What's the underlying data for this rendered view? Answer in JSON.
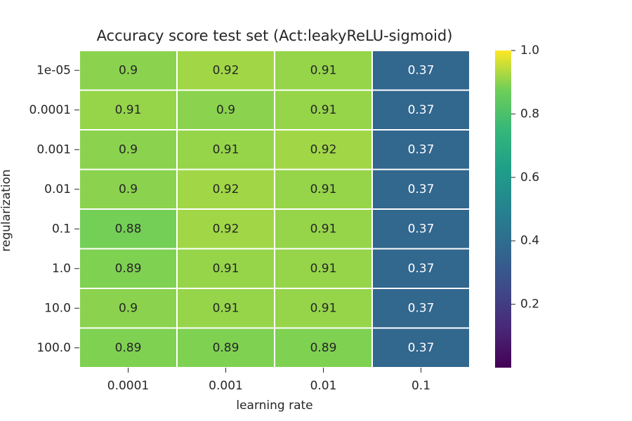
{
  "chart_data": {
    "type": "heatmap",
    "title": "Accuracy score test set (Act:leakyReLU-sigmoid)",
    "xlabel": "learning rate",
    "ylabel": "regularization",
    "x_categories": [
      "0.0001",
      "0.001",
      "0.01",
      "0.1"
    ],
    "y_categories": [
      "1e-05",
      "0.0001",
      "0.001",
      "0.01",
      "0.1",
      "1.0",
      "10.0",
      "100.0"
    ],
    "values": [
      [
        0.9,
        0.92,
        0.91,
        0.37
      ],
      [
        0.91,
        0.9,
        0.91,
        0.37
      ],
      [
        0.9,
        0.91,
        0.92,
        0.37
      ],
      [
        0.9,
        0.92,
        0.91,
        0.37
      ],
      [
        0.88,
        0.92,
        0.91,
        0.37
      ],
      [
        0.89,
        0.91,
        0.91,
        0.37
      ],
      [
        0.9,
        0.91,
        0.91,
        0.37
      ],
      [
        0.89,
        0.89,
        0.89,
        0.37
      ]
    ],
    "colormap": "viridis",
    "colorbar": {
      "range": [
        0.0,
        1.0
      ],
      "ticks": [
        "0.2",
        "0.4",
        "0.6",
        "0.8",
        "1.0"
      ]
    },
    "grid": false
  }
}
